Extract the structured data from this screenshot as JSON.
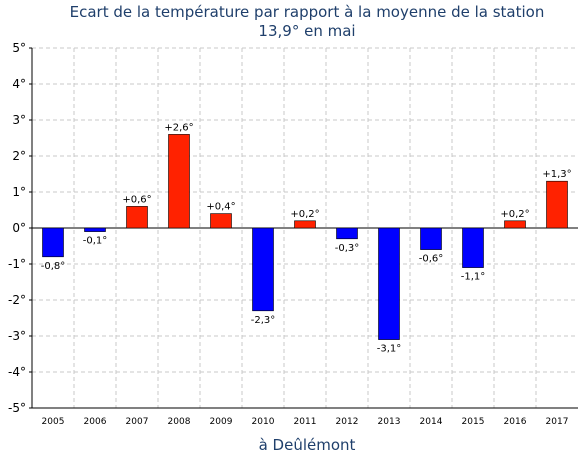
{
  "chart_data": {
    "type": "bar",
    "title": "Ecart de la température par rapport à la moyenne de la station",
    "subtitle": "13,9° en mai",
    "xlabel": "à Deûlémont",
    "ylabel": "",
    "ylim": [
      -5,
      5
    ],
    "yticks": [
      "5°",
      "4°",
      "3°",
      "2°",
      "1°",
      "0°",
      "-1°",
      "-2°",
      "-3°",
      "-4°",
      "-5°"
    ],
    "categories": [
      "2005",
      "2006",
      "2007",
      "2008",
      "2009",
      "2010",
      "2011",
      "2012",
      "2013",
      "2014",
      "2015",
      "2016",
      "2017"
    ],
    "values": [
      -0.8,
      -0.1,
      0.6,
      2.6,
      0.4,
      -2.3,
      0.2,
      -0.3,
      -3.1,
      -0.6,
      -1.1,
      0.2,
      1.3
    ],
    "value_labels": [
      "-0,8°",
      "-0,1°",
      "+0,6°",
      "+2,6°",
      "+0,4°",
      "-2,3°",
      "+0,2°",
      "-0,3°",
      "-3,1°",
      "-0,6°",
      "-1,1°",
      "+0,2°",
      "+1,3°"
    ],
    "grid": true,
    "colors": {
      "positive": "#ff2200",
      "negative": "#0000ff",
      "grid": "#c8c8c8",
      "axis": "#000000",
      "title": "#1f3f6b"
    }
  }
}
